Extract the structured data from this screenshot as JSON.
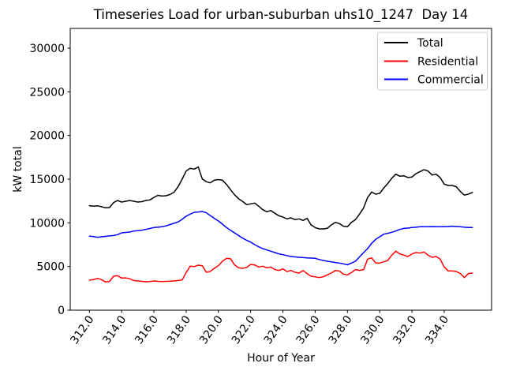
{
  "chart_data": {
    "type": "line",
    "title": "Timeseries Load for urban-suburban uhs10_1247  Day 14",
    "xlabel": "Hour of Year",
    "ylabel": "kW total",
    "xlim": [
      310.8125,
      336.9375
    ],
    "ylim": [
      0,
      32258
    ],
    "grid": false,
    "legend_position": "upper right",
    "xticks": {
      "values": [
        312,
        314,
        316,
        318,
        320,
        322,
        324,
        326,
        328,
        330,
        332,
        334
      ],
      "labels": [
        "312.0",
        "314.0",
        "316.0",
        "318.0",
        "320.0",
        "322.0",
        "324.0",
        "326.0",
        "328.0",
        "330.0",
        "332.0",
        "334.0"
      ]
    },
    "yticks": {
      "values": [
        0,
        5000,
        10000,
        15000,
        20000,
        25000,
        30000
      ],
      "labels": [
        "0",
        "5000",
        "10000",
        "15000",
        "20000",
        "25000",
        "30000"
      ]
    },
    "x": {
      "start": 312.0,
      "step": 0.25,
      "count": 96
    },
    "series": [
      {
        "name": "Total",
        "color": "#000000",
        "values": [
          11960,
          11900,
          11950,
          11850,
          11720,
          11750,
          12320,
          12560,
          12380,
          12470,
          12560,
          12470,
          12380,
          12420,
          12560,
          12625,
          12900,
          13150,
          13070,
          13100,
          13250,
          13500,
          14130,
          15000,
          15930,
          16240,
          16150,
          16400,
          15030,
          14700,
          14580,
          14880,
          14950,
          14880,
          14400,
          13800,
          13220,
          12770,
          12450,
          12080,
          12170,
          12260,
          11900,
          11500,
          11270,
          11415,
          11100,
          10815,
          10660,
          10450,
          10570,
          10360,
          10450,
          10270,
          10510,
          9760,
          9460,
          9310,
          9310,
          9370,
          9760,
          10060,
          9910,
          9610,
          9550,
          10060,
          10360,
          11000,
          11720,
          12900,
          13525,
          13280,
          13370,
          13980,
          14500,
          15100,
          15570,
          15330,
          15390,
          15180,
          15240,
          15630,
          15870,
          16080,
          15930,
          15480,
          15570,
          15180,
          14430,
          14280,
          14280,
          14130,
          13580,
          13170,
          13280,
          13480
        ]
      },
      {
        "name": "Residential",
        "color": "#ff0000",
        "values": [
          3430,
          3500,
          3645,
          3500,
          3225,
          3300,
          3885,
          3950,
          3675,
          3700,
          3600,
          3400,
          3340,
          3300,
          3250,
          3280,
          3345,
          3300,
          3280,
          3300,
          3320,
          3350,
          3400,
          3450,
          4300,
          5030,
          4990,
          5150,
          5090,
          4340,
          4450,
          4800,
          5100,
          5600,
          5930,
          5890,
          5200,
          4850,
          4790,
          4900,
          5240,
          5180,
          4940,
          5030,
          4850,
          4940,
          4640,
          4545,
          4730,
          4430,
          4545,
          4340,
          4250,
          4545,
          4185,
          3885,
          3825,
          3735,
          3825,
          4040,
          4250,
          4545,
          4485,
          4130,
          4040,
          4300,
          4640,
          4550,
          4640,
          5845,
          5990,
          5390,
          5390,
          5540,
          5690,
          6295,
          6750,
          6445,
          6295,
          6145,
          6445,
          6600,
          6540,
          6660,
          6295,
          6055,
          6145,
          5845,
          4940,
          4490,
          4490,
          4430,
          4190,
          3735,
          4190,
          4250
        ]
      },
      {
        "name": "Commercial",
        "color": "#0000ff",
        "values": [
          8465,
          8420,
          8345,
          8400,
          8450,
          8500,
          8550,
          8650,
          8855,
          8900,
          8950,
          9050,
          9100,
          9150,
          9250,
          9350,
          9460,
          9500,
          9550,
          9650,
          9800,
          9950,
          10100,
          10400,
          10750,
          11000,
          11200,
          11240,
          11300,
          11150,
          10815,
          10500,
          10210,
          9850,
          9460,
          9150,
          8855,
          8550,
          8250,
          8000,
          7800,
          7500,
          7255,
          7050,
          6895,
          6750,
          6600,
          6450,
          6355,
          6250,
          6145,
          6100,
          6055,
          6020,
          5990,
          5960,
          5935,
          5800,
          5690,
          5600,
          5540,
          5460,
          5390,
          5300,
          5200,
          5390,
          5600,
          6100,
          6600,
          7050,
          7655,
          8105,
          8405,
          8705,
          8800,
          8915,
          9065,
          9245,
          9365,
          9400,
          9460,
          9500,
          9550,
          9550,
          9560,
          9570,
          9560,
          9550,
          9550,
          9580,
          9610,
          9580,
          9550,
          9500,
          9460,
          9460
        ]
      }
    ]
  }
}
